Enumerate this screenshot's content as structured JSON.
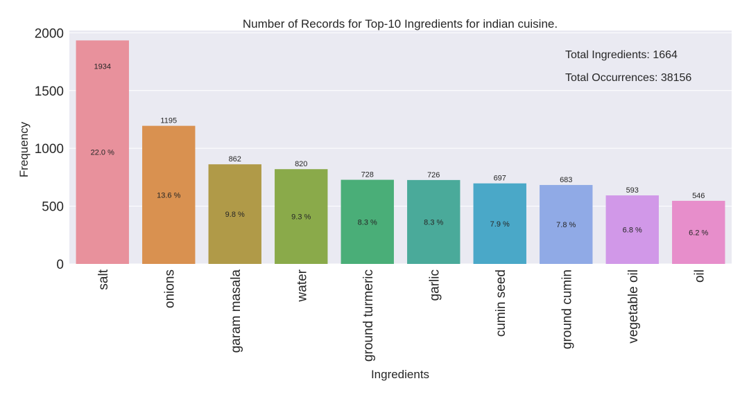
{
  "chart_data": {
    "type": "bar",
    "title": "Number of Records for Top-10 Ingredients for indian cuisine.",
    "xlabel": "Ingredients",
    "ylabel": "Frequency",
    "ylim": [
      0,
      2020
    ],
    "yticks": [
      0,
      500,
      1000,
      1500,
      2000
    ],
    "grid": true,
    "categories": [
      "salt",
      "onions",
      "garam masala",
      "water",
      "ground turmeric",
      "garlic",
      "cumin seed",
      "ground cumin",
      "vegetable oil",
      "oil"
    ],
    "values": [
      1934,
      1195,
      862,
      820,
      728,
      726,
      697,
      683,
      593,
      546
    ],
    "percent_labels": [
      "22.0 %",
      "13.6 %",
      "9.8 %",
      "9.3 %",
      "8.3 %",
      "8.3 %",
      "7.9 %",
      "7.8 %",
      "6.8 %",
      "6.2 %"
    ],
    "colors": [
      "#E8919C",
      "#D99150",
      "#B09A48",
      "#8AAA4A",
      "#4AAE78",
      "#4AAA9A",
      "#4AA8C8",
      "#90AAE6",
      "#D198E8",
      "#E78ECB"
    ],
    "annotations": [
      "Total Ingredients: 1664",
      "Total Occurrences: 38156"
    ],
    "background": "#EAEAF2",
    "grid_color": "#FFFFFF"
  }
}
